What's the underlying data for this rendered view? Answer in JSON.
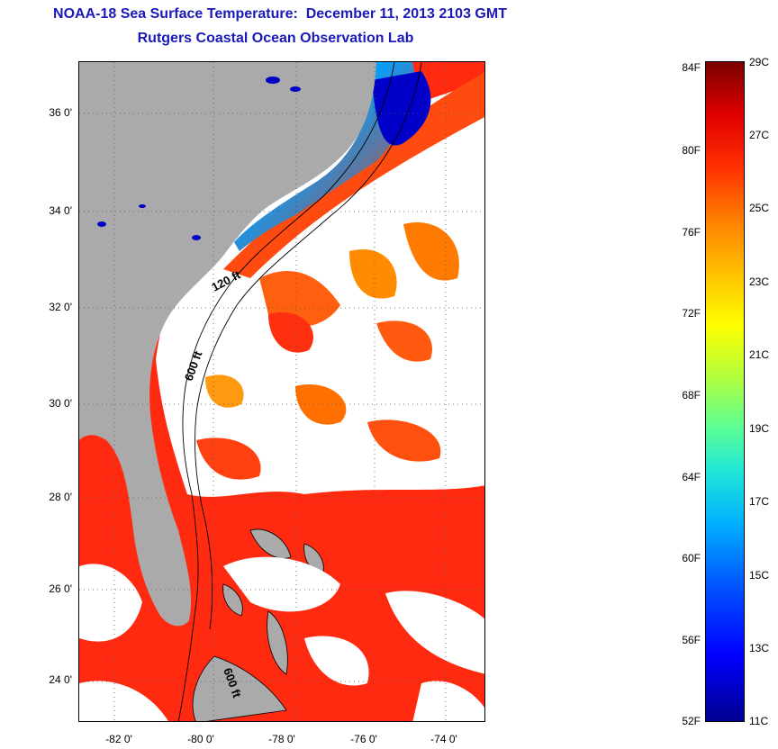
{
  "header": {
    "title": "NOAA-18 Sea Surface Temperature:  December 11, 2013 2103 GMT",
    "subtitle": "Rutgers Coastal Ocean Observation Lab"
  },
  "map": {
    "latitude_labels": [
      "36 0'",
      "34 0'",
      "32 0'",
      "30 0'",
      "28 0'",
      "26 0'",
      "24 0'"
    ],
    "longitude_labels": [
      "-82 0'",
      "-80 0'",
      "-78 0'",
      "-76 0'",
      "-74 0'"
    ],
    "contour_labels": [
      "120 ft",
      "600 ft",
      "600 ft"
    ],
    "colors": {
      "land": "#aaaaaa",
      "cloud": "#ffffff",
      "warm_water": "#ff2a10",
      "cool_water": "#0000c8"
    }
  },
  "colorbar": {
    "fahrenheit_labels": [
      "84F",
      "80F",
      "76F",
      "72F",
      "68F",
      "64F",
      "60F",
      "56F",
      "52F"
    ],
    "celsius_labels": [
      "29C",
      "27C",
      "25C",
      "23C",
      "21C",
      "19C",
      "17C",
      "15C",
      "13C",
      "11C"
    ],
    "range_fahrenheit": [
      52,
      84
    ],
    "range_celsius": [
      11,
      29
    ]
  }
}
